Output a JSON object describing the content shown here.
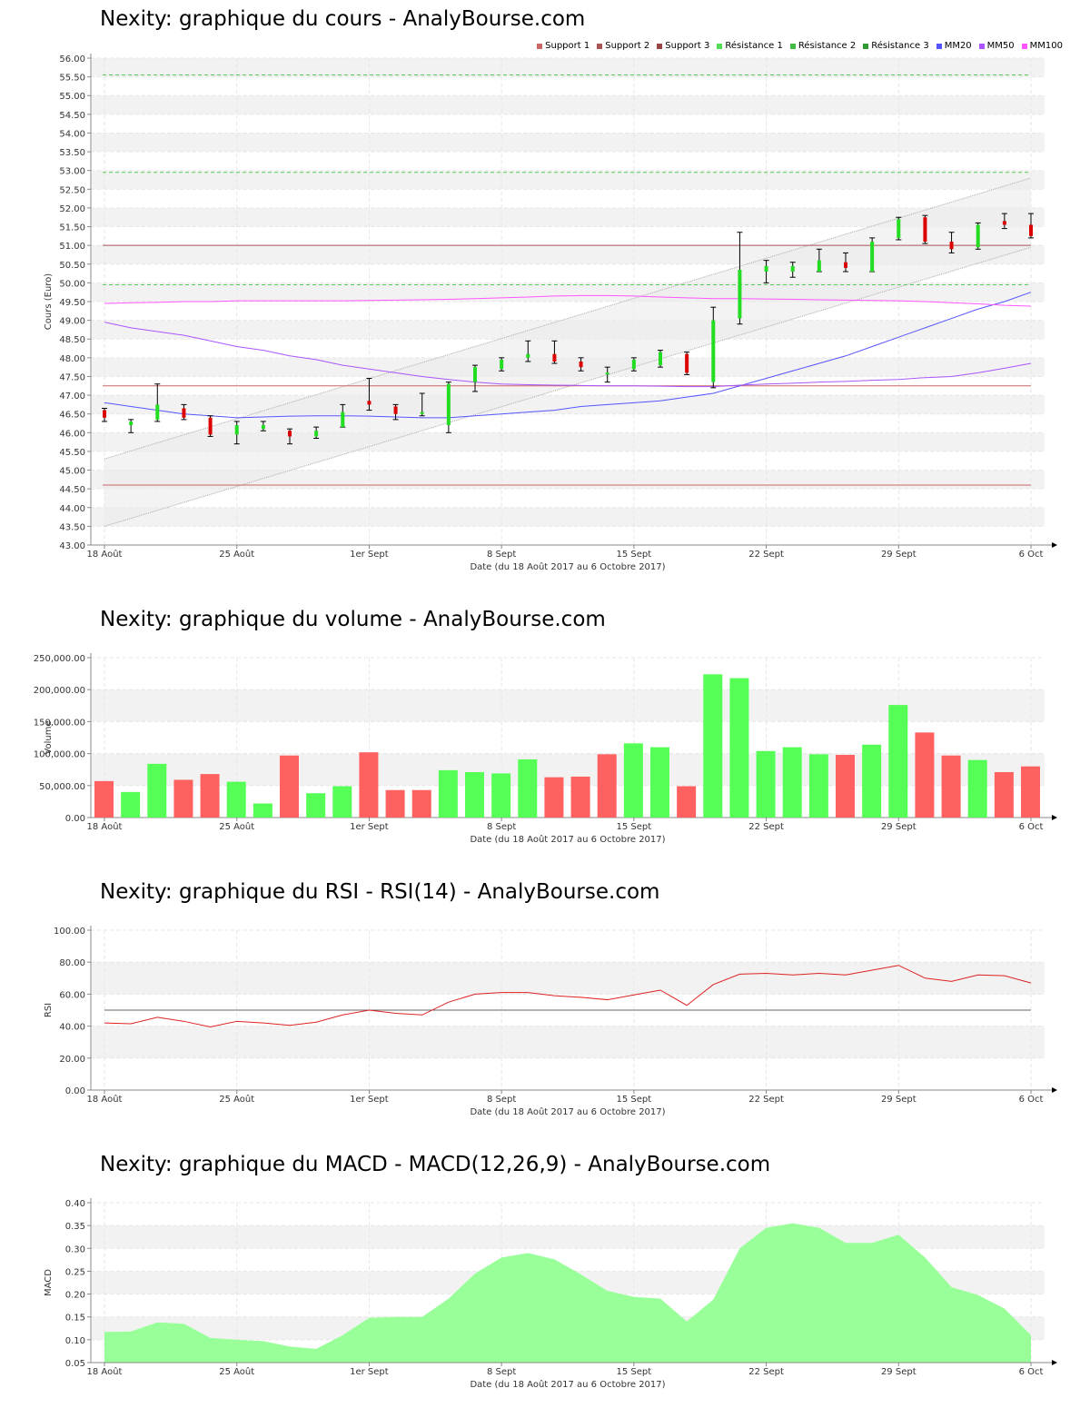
{
  "chart_data": [
    {
      "id": "cours",
      "type": "candlestick",
      "title": "Nexity: graphique du cours - AnalyBourse.com",
      "xlabel": "Date (du 18 Août 2017 au 6 Octobre 2017)",
      "ylabel": "Cours (Euro)",
      "ylim": [
        43.0,
        56.0
      ],
      "ytick_step": 0.5,
      "ytick_decimals": 2,
      "xticks": [
        {
          "i": 0,
          "label": "18 Août"
        },
        {
          "i": 5,
          "label": "25 Août"
        },
        {
          "i": 10,
          "label": "1er Sept"
        },
        {
          "i": 15,
          "label": "8 Sept"
        },
        {
          "i": 20,
          "label": "15 Sept"
        },
        {
          "i": 25,
          "label": "22 Sept"
        },
        {
          "i": 30,
          "label": "29 Sept"
        },
        {
          "i": 35,
          "label": "6 Oct"
        }
      ],
      "legend": {
        "placement": "top-right",
        "items": [
          {
            "label": "Support 1",
            "color": "#cc6666"
          },
          {
            "label": "Support 2",
            "color": "#aa5555"
          },
          {
            "label": "Support 3",
            "color": "#994444"
          },
          {
            "label": "Résistance 1",
            "color": "#55dd55"
          },
          {
            "label": "Résistance 2",
            "color": "#44bb44"
          },
          {
            "label": "Résistance 3",
            "color": "#339933"
          },
          {
            "label": "MM20",
            "color": "#5555ff"
          },
          {
            "label": "MM50",
            "color": "#aa55ff"
          },
          {
            "label": "MM100",
            "color": "#ff55ff"
          }
        ]
      },
      "candles": [
        {
          "o": 46.6,
          "h": 46.65,
          "l": 46.3,
          "c": 46.4
        },
        {
          "o": 46.2,
          "h": 46.35,
          "l": 46.0,
          "c": 46.3
        },
        {
          "o": 46.35,
          "h": 47.3,
          "l": 46.3,
          "c": 46.75
        },
        {
          "o": 46.65,
          "h": 46.75,
          "l": 46.35,
          "c": 46.4
        },
        {
          "o": 46.4,
          "h": 46.45,
          "l": 45.9,
          "c": 45.95
        },
        {
          "o": 45.95,
          "h": 46.3,
          "l": 45.7,
          "c": 46.2
        },
        {
          "o": 46.1,
          "h": 46.3,
          "l": 46.05,
          "c": 46.2
        },
        {
          "o": 46.05,
          "h": 46.1,
          "l": 45.7,
          "c": 45.9
        },
        {
          "o": 45.9,
          "h": 46.15,
          "l": 45.85,
          "c": 46.05
        },
        {
          "o": 46.15,
          "h": 46.75,
          "l": 46.15,
          "c": 46.55
        },
        {
          "o": 46.85,
          "h": 47.45,
          "l": 46.6,
          "c": 46.75
        },
        {
          "o": 46.7,
          "h": 46.75,
          "l": 46.35,
          "c": 46.5
        },
        {
          "o": 46.5,
          "h": 47.05,
          "l": 46.45,
          "c": 46.55
        },
        {
          "o": 46.2,
          "h": 47.35,
          "l": 46.0,
          "c": 47.3
        },
        {
          "o": 47.35,
          "h": 47.8,
          "l": 47.1,
          "c": 47.75
        },
        {
          "o": 47.7,
          "h": 48.0,
          "l": 47.65,
          "c": 47.95
        },
        {
          "o": 48.0,
          "h": 48.45,
          "l": 47.9,
          "c": 48.1
        },
        {
          "o": 48.1,
          "h": 48.45,
          "l": 47.85,
          "c": 47.9
        },
        {
          "o": 47.9,
          "h": 48.0,
          "l": 47.65,
          "c": 47.75
        },
        {
          "o": 47.6,
          "h": 47.75,
          "l": 47.35,
          "c": 47.6
        },
        {
          "o": 47.7,
          "h": 48.0,
          "l": 47.65,
          "c": 47.95
        },
        {
          "o": 47.8,
          "h": 48.2,
          "l": 47.75,
          "c": 48.15
        },
        {
          "o": 48.1,
          "h": 48.15,
          "l": 47.55,
          "c": 47.6
        },
        {
          "o": 47.35,
          "h": 49.35,
          "l": 47.2,
          "c": 49.0
        },
        {
          "o": 49.05,
          "h": 51.35,
          "l": 48.9,
          "c": 50.35
        },
        {
          "o": 50.3,
          "h": 50.6,
          "l": 50.0,
          "c": 50.45
        },
        {
          "o": 50.3,
          "h": 50.55,
          "l": 50.15,
          "c": 50.45
        },
        {
          "o": 50.3,
          "h": 50.9,
          "l": 50.3,
          "c": 50.6
        },
        {
          "o": 50.55,
          "h": 50.8,
          "l": 50.3,
          "c": 50.4
        },
        {
          "o": 50.3,
          "h": 51.2,
          "l": 50.3,
          "c": 51.1
        },
        {
          "o": 51.2,
          "h": 51.75,
          "l": 51.15,
          "c": 51.7
        },
        {
          "o": 51.75,
          "h": 51.8,
          "l": 51.05,
          "c": 51.1
        },
        {
          "o": 51.1,
          "h": 51.35,
          "l": 50.8,
          "c": 50.9
        },
        {
          "o": 50.95,
          "h": 51.6,
          "l": 50.9,
          "c": 51.55
        },
        {
          "o": 51.65,
          "h": 51.85,
          "l": 51.45,
          "c": 51.55
        },
        {
          "o": 51.55,
          "h": 51.85,
          "l": 51.2,
          "c": 51.25
        }
      ],
      "hlines": [
        {
          "name": "Support 1",
          "value": 47.25,
          "color": "#cc6666",
          "style": "solid"
        },
        {
          "name": "Support 2",
          "value": 44.6,
          "color": "#cc6666",
          "style": "solid"
        },
        {
          "name": "Support 3",
          "value": 51.0,
          "color": "#aa5555",
          "style": "solid"
        },
        {
          "name": "Résistance 1",
          "value": 49.95,
          "color": "#55cc55",
          "style": "dashed"
        },
        {
          "name": "Résistance 2",
          "value": 52.95,
          "color": "#55cc55",
          "style": "dashed"
        },
        {
          "name": "Résistance 3",
          "value": 55.55,
          "color": "#55cc55",
          "style": "dashed"
        }
      ],
      "channel": {
        "upper": [
          45.3,
          52.8
        ],
        "lower": [
          43.5,
          50.95
        ],
        "color": "#aaaaaa"
      },
      "moving_averages": [
        {
          "name": "MM20",
          "color": "#5555ff",
          "values": [
            46.8,
            46.7,
            46.6,
            46.5,
            46.45,
            46.4,
            46.42,
            46.44,
            46.45,
            46.45,
            46.44,
            46.42,
            46.4,
            46.4,
            46.45,
            46.5,
            46.55,
            46.6,
            46.7,
            46.75,
            46.8,
            46.85,
            46.95,
            47.05,
            47.25,
            47.45,
            47.65,
            47.85,
            48.05,
            48.3,
            48.55,
            48.8,
            49.05,
            49.3,
            49.5,
            49.75
          ]
        },
        {
          "name": "MM50",
          "color": "#aa55ff",
          "values": [
            48.95,
            48.8,
            48.7,
            48.6,
            48.45,
            48.3,
            48.2,
            48.05,
            47.95,
            47.8,
            47.7,
            47.6,
            47.5,
            47.42,
            47.35,
            47.3,
            47.28,
            47.27,
            47.26,
            47.25,
            47.25,
            47.24,
            47.23,
            47.23,
            47.27,
            47.3,
            47.32,
            47.35,
            47.37,
            47.4,
            47.42,
            47.47,
            47.5,
            47.6,
            47.72,
            47.85
          ]
        },
        {
          "name": "MM100",
          "color": "#ff55ff",
          "values": [
            49.45,
            49.47,
            49.48,
            49.5,
            49.5,
            49.52,
            49.52,
            49.52,
            49.52,
            49.52,
            49.53,
            49.54,
            49.55,
            49.56,
            49.58,
            49.6,
            49.62,
            49.65,
            49.66,
            49.66,
            49.65,
            49.62,
            49.6,
            49.58,
            49.58,
            49.57,
            49.56,
            49.55,
            49.54,
            49.53,
            49.52,
            49.5,
            49.47,
            49.44,
            49.4,
            49.38
          ]
        }
      ]
    },
    {
      "id": "volume",
      "type": "bar",
      "title": "Nexity: graphique du volume - AnalyBourse.com",
      "xlabel": "Date (du 18 Août 2017 au 6 Octobre 2017)",
      "ylabel": "Volume",
      "ylim": [
        0,
        250000
      ],
      "ytick_step": 50000,
      "ytick_decimals": 2,
      "xticks": [
        {
          "i": 0,
          "label": "18 Août"
        },
        {
          "i": 5,
          "label": "25 Août"
        },
        {
          "i": 10,
          "label": "1er Sept"
        },
        {
          "i": 15,
          "label": "8 Sept"
        },
        {
          "i": 20,
          "label": "15 Sept"
        },
        {
          "i": 25,
          "label": "22 Sept"
        },
        {
          "i": 30,
          "label": "29 Sept"
        },
        {
          "i": 35,
          "label": "6 Oct"
        }
      ],
      "up_color": "#55ff55",
      "down_color": "#ff6060",
      "values": [
        57000,
        40000,
        84000,
        59000,
        68000,
        56000,
        22000,
        97000,
        38000,
        49000,
        102000,
        43000,
        43000,
        74000,
        71000,
        69000,
        91000,
        63000,
        64000,
        99000,
        116000,
        110000,
        49000,
        224000,
        218000,
        104000,
        110000,
        99000,
        98000,
        114000,
        176000,
        133000,
        97000,
        90000,
        71000,
        80000
      ],
      "up": [
        false,
        true,
        true,
        false,
        false,
        true,
        true,
        false,
        true,
        true,
        false,
        false,
        false,
        true,
        true,
        true,
        true,
        false,
        false,
        false,
        true,
        true,
        false,
        true,
        true,
        true,
        true,
        true,
        false,
        true,
        true,
        false,
        false,
        true,
        false,
        false
      ]
    },
    {
      "id": "rsi",
      "type": "line",
      "title": "Nexity: graphique du RSI - RSI(14) - AnalyBourse.com",
      "xlabel": "Date (du 18 Août 2017 au 6 Octobre 2017)",
      "ylabel": "RSI",
      "ylim": [
        0,
        100
      ],
      "ytick_step": 20,
      "ytick_decimals": 2,
      "xticks": [
        {
          "i": 0,
          "label": "18 Août"
        },
        {
          "i": 5,
          "label": "25 Août"
        },
        {
          "i": 10,
          "label": "1er Sept"
        },
        {
          "i": 15,
          "label": "8 Sept"
        },
        {
          "i": 20,
          "label": "15 Sept"
        },
        {
          "i": 25,
          "label": "22 Sept"
        },
        {
          "i": 30,
          "label": "29 Sept"
        },
        {
          "i": 35,
          "label": "6 Oct"
        }
      ],
      "reference": {
        "value": 50,
        "color": "#666666"
      },
      "series": [
        {
          "color": "#dd2222",
          "values": [
            42,
            41.5,
            45.5,
            43,
            39.5,
            43,
            42,
            40.5,
            42.5,
            47,
            50,
            48,
            47,
            55,
            60,
            61,
            61,
            59,
            58,
            56.5,
            59.5,
            62.5,
            53,
            66,
            72.5,
            73,
            72,
            73,
            72,
            75,
            78,
            70,
            68,
            72,
            71.5,
            67
          ]
        }
      ]
    },
    {
      "id": "macd",
      "type": "area",
      "title": "Nexity: graphique du MACD - MACD(12,26,9) - AnalyBourse.com",
      "xlabel": "Date (du 18 Août 2017 au 6 Octobre 2017)",
      "ylabel": "MACD",
      "ylim": [
        0.05,
        0.4
      ],
      "ytick_step": 0.05,
      "ytick_decimals": 2,
      "xticks": [
        {
          "i": 0,
          "label": "18 Août"
        },
        {
          "i": 5,
          "label": "25 Août"
        },
        {
          "i": 10,
          "label": "1er Sept"
        },
        {
          "i": 15,
          "label": "8 Sept"
        },
        {
          "i": 20,
          "label": "15 Sept"
        },
        {
          "i": 25,
          "label": "22 Sept"
        },
        {
          "i": 30,
          "label": "29 Sept"
        },
        {
          "i": 35,
          "label": "6 Oct"
        }
      ],
      "series": [
        {
          "color": "#99ff99",
          "values": [
            0.117,
            0.118,
            0.138,
            0.135,
            0.104,
            0.1,
            0.097,
            0.085,
            0.08,
            0.11,
            0.148,
            0.15,
            0.15,
            0.19,
            0.245,
            0.28,
            0.29,
            0.276,
            0.243,
            0.207,
            0.194,
            0.19,
            0.14,
            0.188,
            0.3,
            0.345,
            0.355,
            0.345,
            0.312,
            0.312,
            0.33,
            0.28,
            0.215,
            0.198,
            0.168,
            0.11
          ]
        }
      ]
    }
  ]
}
